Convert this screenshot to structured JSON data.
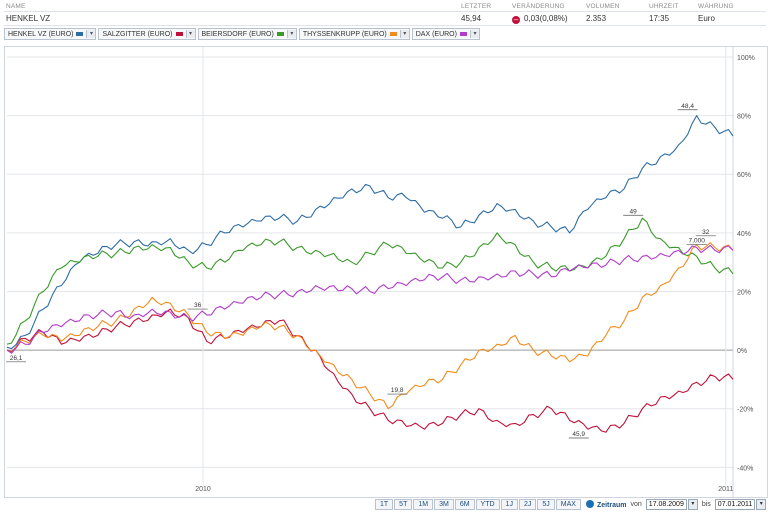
{
  "header": {
    "cols": {
      "name": "NAME",
      "letzter": "LETZTER",
      "veraenderung": "VERÄNDERUNG",
      "volumen": "VOLUMEN",
      "uhrzeit": "UHRZEIT",
      "waehrung": "WÄHRUNG"
    },
    "row": {
      "name": "HENKEL VZ",
      "letzter": "45,94",
      "veraenderung": "0,03(0,08%)",
      "volumen": "2.353",
      "uhrzeit": "17:35",
      "waehrung": "Euro"
    },
    "change_icon": "minus-icon"
  },
  "legend": [
    {
      "label": "HENKEL VZ (EURO)",
      "color": "#2e6da4"
    },
    {
      "label": "SALZGITTER (EURO)",
      "color": "#c0103a"
    },
    {
      "label": "BEIERSDORF (EURO)",
      "color": "#3a9a2a"
    },
    {
      "label": "THYSSENKRUPP (EURO)",
      "color": "#f08c1e"
    },
    {
      "label": "DAX (EURO)",
      "color": "#b03cc8"
    }
  ],
  "range_buttons": [
    "1T",
    "5T",
    "1M",
    "3M",
    "6M",
    "YTD",
    "1J",
    "2J",
    "5J",
    "MAX"
  ],
  "zeitraum": {
    "label": "Zeitraum",
    "von_label": "von",
    "von": "17.08.2009",
    "bis_label": "bis",
    "bis": "07.01.2011"
  },
  "chart_data": {
    "type": "line",
    "x": [
      0,
      1,
      2,
      3,
      4,
      5,
      6,
      7,
      8,
      9,
      10,
      11,
      12,
      13,
      14,
      15,
      16,
      17,
      18,
      19,
      20,
      21,
      22,
      23,
      24,
      25,
      26,
      27,
      28,
      29,
      30,
      31,
      32,
      33,
      34,
      35,
      36,
      37,
      38,
      39,
      40
    ],
    "x_ticks": [
      {
        "label": "2010",
        "pos": 0.27
      },
      {
        "label": "2011",
        "pos": 0.99
      }
    ],
    "ylim": [
      -45,
      100
    ],
    "y_ticks": [
      {
        "v": 100,
        "label": "100%"
      },
      {
        "v": 80,
        "label": "80%"
      },
      {
        "v": 60,
        "label": "60%"
      },
      {
        "v": 40,
        "label": "40%"
      },
      {
        "v": 20,
        "label": "20%"
      },
      {
        "v": 0,
        "label": "0%"
      },
      {
        "v": -20,
        "label": "-20%"
      },
      {
        "v": -40,
        "label": "-40%"
      }
    ],
    "grid": true,
    "series": [
      {
        "name": "HENKEL VZ (EURO)",
        "color": "#2e6da4",
        "values": [
          1,
          5,
          14,
          22,
          30,
          33,
          36,
          37,
          37,
          38,
          34,
          36,
          40,
          42,
          44,
          45,
          44,
          48,
          52,
          55,
          56,
          52,
          52,
          47,
          45,
          42,
          46,
          50,
          48,
          44,
          42,
          40,
          48,
          52,
          55,
          62,
          66,
          70,
          80,
          76,
          73
        ]
      },
      {
        "name": "SALZGITTER (EURO)",
        "color": "#c0103a",
        "values": [
          0,
          4,
          6,
          2,
          3,
          5,
          8,
          10,
          12,
          14,
          11,
          3,
          4,
          6,
          8,
          10,
          5,
          0,
          -8,
          -15,
          -20,
          -24,
          -26,
          -27,
          -25,
          -22,
          -20,
          -24,
          -25,
          -22,
          -20,
          -24,
          -27,
          -28,
          -25,
          -20,
          -16,
          -14,
          -11,
          -9,
          -10
        ]
      },
      {
        "name": "BEIERSDORF (EURO)",
        "color": "#3a9a2a",
        "values": [
          2,
          10,
          20,
          28,
          30,
          32,
          33,
          35,
          36,
          35,
          30,
          28,
          30,
          34,
          36,
          37,
          35,
          34,
          33,
          30,
          33,
          36,
          33,
          30,
          28,
          30,
          35,
          40,
          36,
          30,
          28,
          27,
          28,
          32,
          38,
          45,
          38,
          35,
          32,
          28,
          26
        ]
      },
      {
        "name": "THYSSENKRUPP (EURO)",
        "color": "#f08c1e",
        "values": [
          0,
          3,
          5,
          3,
          5,
          8,
          10,
          14,
          18,
          16,
          12,
          6,
          4,
          5,
          8,
          8,
          5,
          0,
          -5,
          -10,
          -15,
          -20,
          -15,
          -12,
          -10,
          -5,
          0,
          2,
          5,
          0,
          -2,
          -4,
          -2,
          5,
          10,
          18,
          22,
          28,
          36,
          35,
          34
        ]
      },
      {
        "name": "DAX (EURO)",
        "color": "#b03cc8",
        "values": [
          0,
          2,
          6,
          8,
          10,
          12,
          13,
          12,
          14,
          13,
          11,
          12,
          14,
          16,
          18,
          19,
          20,
          22,
          22,
          21,
          20,
          21,
          22,
          24,
          25,
          24,
          25,
          26,
          27,
          26,
          25,
          27,
          28,
          29,
          31,
          32,
          33,
          34,
          35,
          34,
          34
        ]
      }
    ],
    "annotations": [
      {
        "label": "48,4",
        "x": 37.5,
        "y": 82
      },
      {
        "label": "49",
        "x": 34.5,
        "y": 46
      },
      {
        "label": "32",
        "x": 38.5,
        "y": 39
      },
      {
        "label": "7,000",
        "x": 38,
        "y": 36
      },
      {
        "label": "26,1",
        "x": 0.5,
        "y": -4
      },
      {
        "label": "19,8",
        "x": 21.5,
        "y": -15
      },
      {
        "label": "45,9",
        "x": 31.5,
        "y": -30
      },
      {
        "label": "36",
        "x": 10.5,
        "y": 14
      }
    ]
  }
}
